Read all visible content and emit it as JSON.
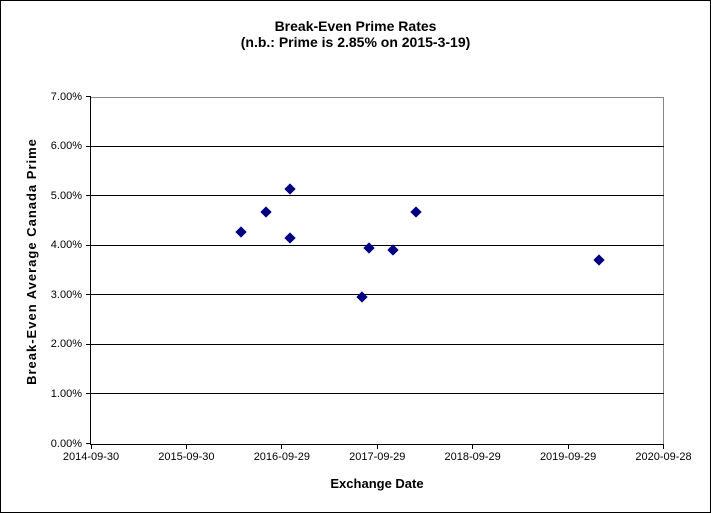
{
  "chart_data": {
    "type": "scatter",
    "title": "Break-Even Prime Rates",
    "subtitle": "(n.b.: Prime is 2.85% on 2015-3-19)",
    "xlabel": "Exchange Date",
    "ylabel": "Break-Even Average Canada Prime",
    "legend": "none",
    "grid": "horizontal-only",
    "x_axis": {
      "start_date": "2014-09-30",
      "range_days": 2190,
      "tick_labels": [
        "2014-09-30",
        "2015-09-30",
        "2016-09-29",
        "2017-09-29",
        "2018-09-29",
        "2019-09-29",
        "2020-09-28"
      ]
    },
    "y_axis": {
      "min": 0,
      "max": 7,
      "unit": "percent",
      "tick_labels": [
        "0.00%",
        "1.00%",
        "2.00%",
        "3.00%",
        "4.00%",
        "5.00%",
        "6.00%",
        "7.00%"
      ]
    },
    "marker": {
      "shape": "diamond",
      "color": "#000080"
    },
    "points": [
      {
        "date": "2016-04-27",
        "value": 4.26
      },
      {
        "date": "2016-07-29",
        "value": 4.68
      },
      {
        "date": "2016-10-29",
        "value": 5.13
      },
      {
        "date": "2016-10-31",
        "value": 4.15
      },
      {
        "date": "2017-07-31",
        "value": 2.96
      },
      {
        "date": "2017-08-28",
        "value": 3.94
      },
      {
        "date": "2017-11-28",
        "value": 3.9
      },
      {
        "date": "2018-02-26",
        "value": 4.67
      },
      {
        "date": "2020-01-27",
        "value": 3.7
      }
    ],
    "colors": {
      "marker": "#000080",
      "gridline": "#000000",
      "plot_border": "#878787",
      "text": "#000000",
      "background": "#ffffff"
    }
  }
}
